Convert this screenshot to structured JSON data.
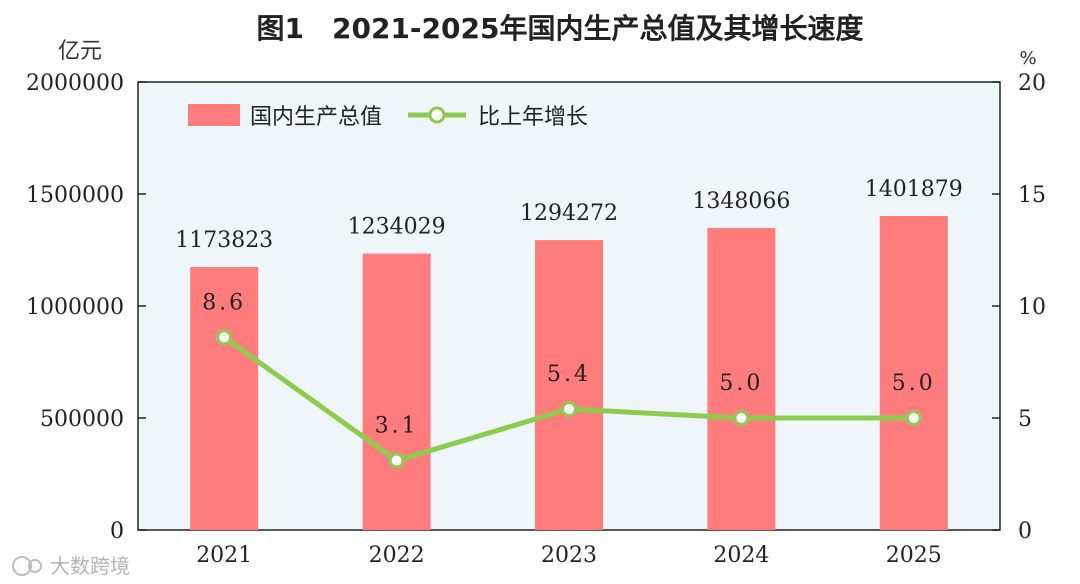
{
  "chart_data": {
    "type": "bar",
    "title": "图1　2021-2025年国内生产总值及其增长速度",
    "categories": [
      "2021",
      "2022",
      "2023",
      "2024",
      "2025"
    ],
    "series": [
      {
        "name": "国内生产总值",
        "type": "bar",
        "axis": "left",
        "values": [
          1173823,
          1234029,
          1294272,
          1348066,
          1401879
        ],
        "color": "#FF7C7C"
      },
      {
        "name": "比上年增长",
        "type": "line",
        "axis": "right",
        "values": [
          8.6,
          3.1,
          5.4,
          5.0,
          5.0
        ],
        "labels": [
          "8.6",
          "3.1",
          "5.4",
          "5.0",
          "5.0"
        ],
        "color": "#8CCB4E"
      }
    ],
    "y_left": {
      "unit": "亿元",
      "ylim": [
        0,
        2000000
      ],
      "ticks": [
        "0",
        "500000",
        "1000000",
        "1500000",
        "2000000"
      ]
    },
    "y_right": {
      "unit": "%",
      "ylim": [
        0,
        20
      ],
      "ticks": [
        "0",
        "5",
        "10",
        "15",
        "20"
      ]
    },
    "plot_background": "#EEF6F9",
    "grid": false,
    "legend_position": "top-left"
  },
  "watermark": "大数跨境"
}
